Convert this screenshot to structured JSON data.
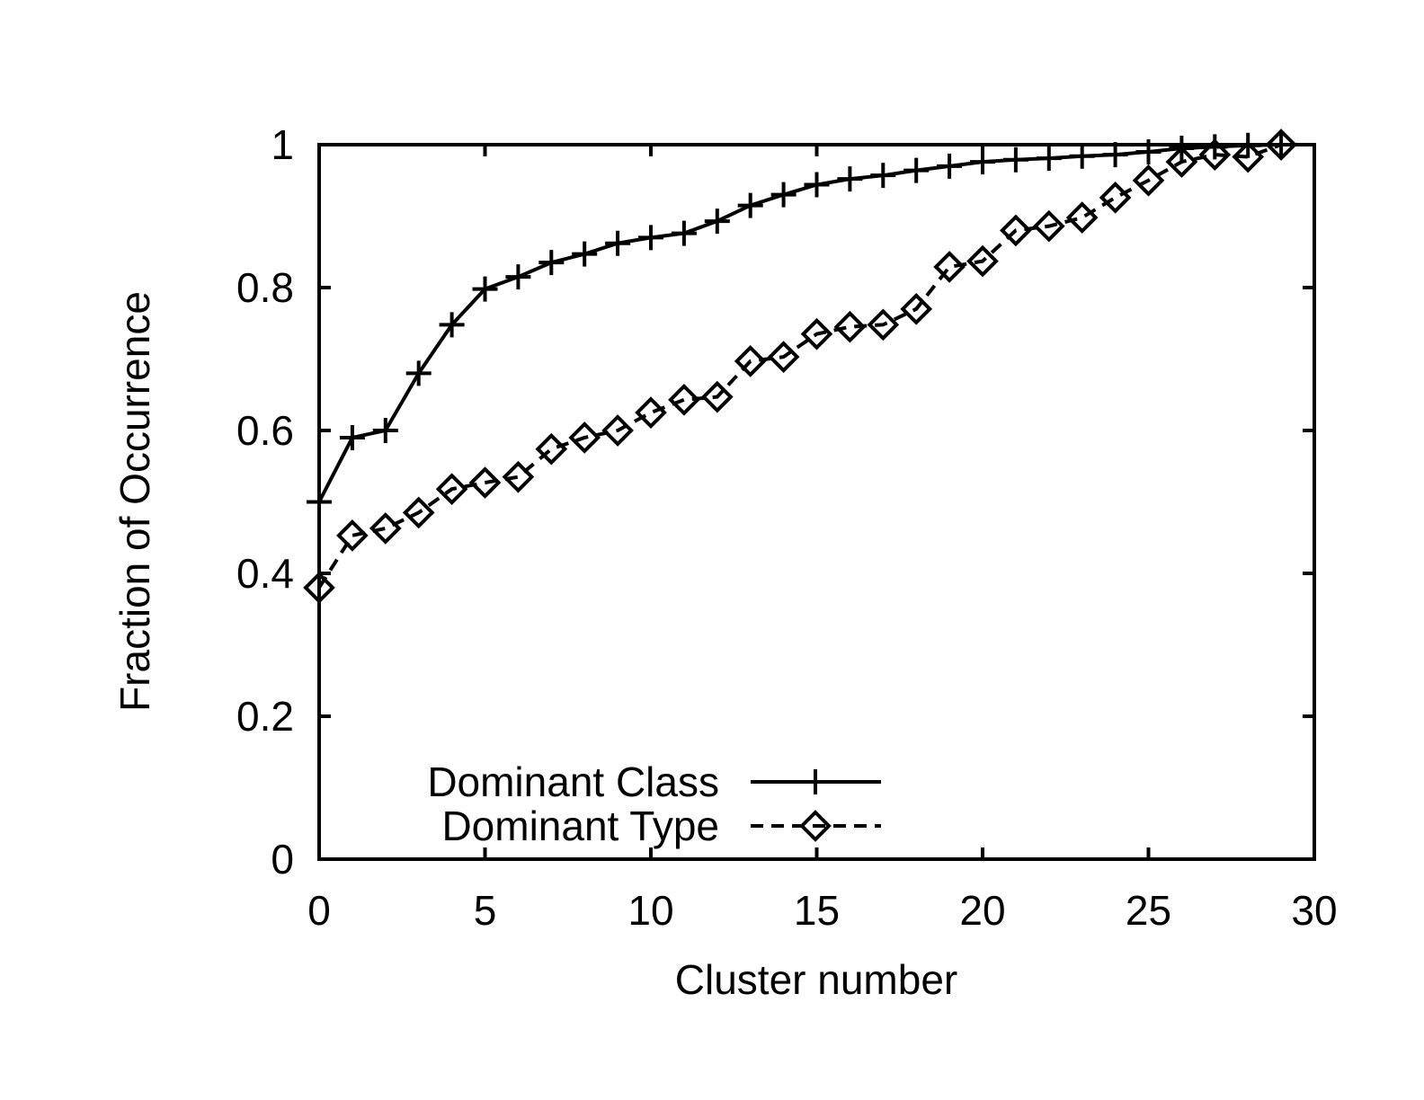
{
  "chart_data": {
    "type": "line",
    "title": "",
    "xlabel": "Cluster number",
    "ylabel": "Fraction of Occurrence",
    "xlim": [
      0,
      30
    ],
    "ylim": [
      0,
      1
    ],
    "grid": false,
    "legend_position": "inside-bottom-left",
    "xticks": {
      "values": [
        0,
        5,
        10,
        15,
        20,
        25,
        30
      ],
      "labels": [
        "0",
        "5",
        "10",
        "15",
        "20",
        "25",
        "30"
      ]
    },
    "yticks": {
      "values": [
        0,
        0.2,
        0.4,
        0.6,
        0.8,
        1
      ],
      "labels": [
        "0",
        "0.2",
        "0.4",
        "0.6",
        "0.8",
        "1"
      ]
    },
    "x": [
      0,
      1,
      2,
      3,
      4,
      5,
      6,
      7,
      8,
      9,
      10,
      11,
      12,
      13,
      14,
      15,
      16,
      17,
      18,
      19,
      20,
      21,
      22,
      23,
      24,
      25,
      26,
      27,
      28,
      29
    ],
    "series": [
      {
        "name": "Dominant Class",
        "line_style": "solid",
        "marker": "plus",
        "values": [
          0.5,
          0.59,
          0.6,
          0.68,
          0.748,
          0.798,
          0.815,
          0.835,
          0.847,
          0.862,
          0.87,
          0.876,
          0.893,
          0.915,
          0.93,
          0.944,
          0.952,
          0.957,
          0.964,
          0.97,
          0.976,
          0.979,
          0.981,
          0.984,
          0.986,
          0.99,
          0.995,
          0.997,
          0.999,
          1.0
        ]
      },
      {
        "name": "Dominant Type",
        "line_style": "dashed",
        "marker": "diamond",
        "values": [
          0.38,
          0.453,
          0.463,
          0.485,
          0.518,
          0.527,
          0.535,
          0.574,
          0.59,
          0.6,
          0.625,
          0.643,
          0.647,
          0.697,
          0.703,
          0.735,
          0.745,
          0.748,
          0.77,
          0.829,
          0.837,
          0.88,
          0.886,
          0.898,
          0.926,
          0.95,
          0.976,
          0.986,
          0.983,
          1.0
        ]
      }
    ]
  },
  "colors": {
    "ink": "#000000",
    "background": "#ffffff"
  }
}
